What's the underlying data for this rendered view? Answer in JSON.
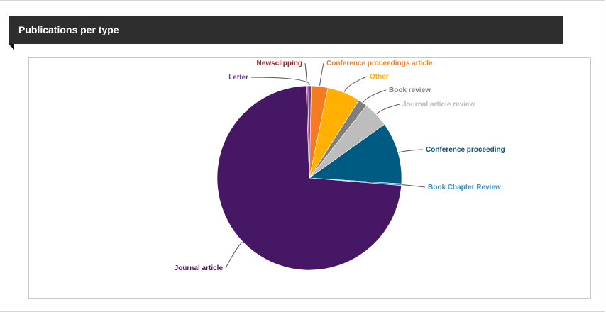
{
  "panel": {
    "title": "Publications per type"
  },
  "chart_data": {
    "type": "pie",
    "title": "",
    "categories": [
      "Letter",
      "Conference proceedings article",
      "Other",
      "Book review",
      "Journal article review",
      "Conference proceeding",
      "Book Chapter Review",
      "Journal article",
      "Newsclipping"
    ],
    "values": [
      0.6,
      2.9,
      5.8,
      1.6,
      4.5,
      10.9,
      0.3,
      73.1,
      0.3
    ],
    "colors": [
      "#6a3d9a",
      "#f47b20",
      "#ffb000",
      "#7f7f7f",
      "#bdbdbd",
      "#005b82",
      "#3a8fc7",
      "#461765",
      "#a51c1c"
    ],
    "label_colors": [
      "#6a3d9a",
      "#f47b20",
      "#ffb000",
      "#7f7f7f",
      "#bdbdbd",
      "#005b82",
      "#3a8fc7",
      "#461765",
      "#a51c1c"
    ],
    "start_angle_deg": -1,
    "legend": "none"
  }
}
